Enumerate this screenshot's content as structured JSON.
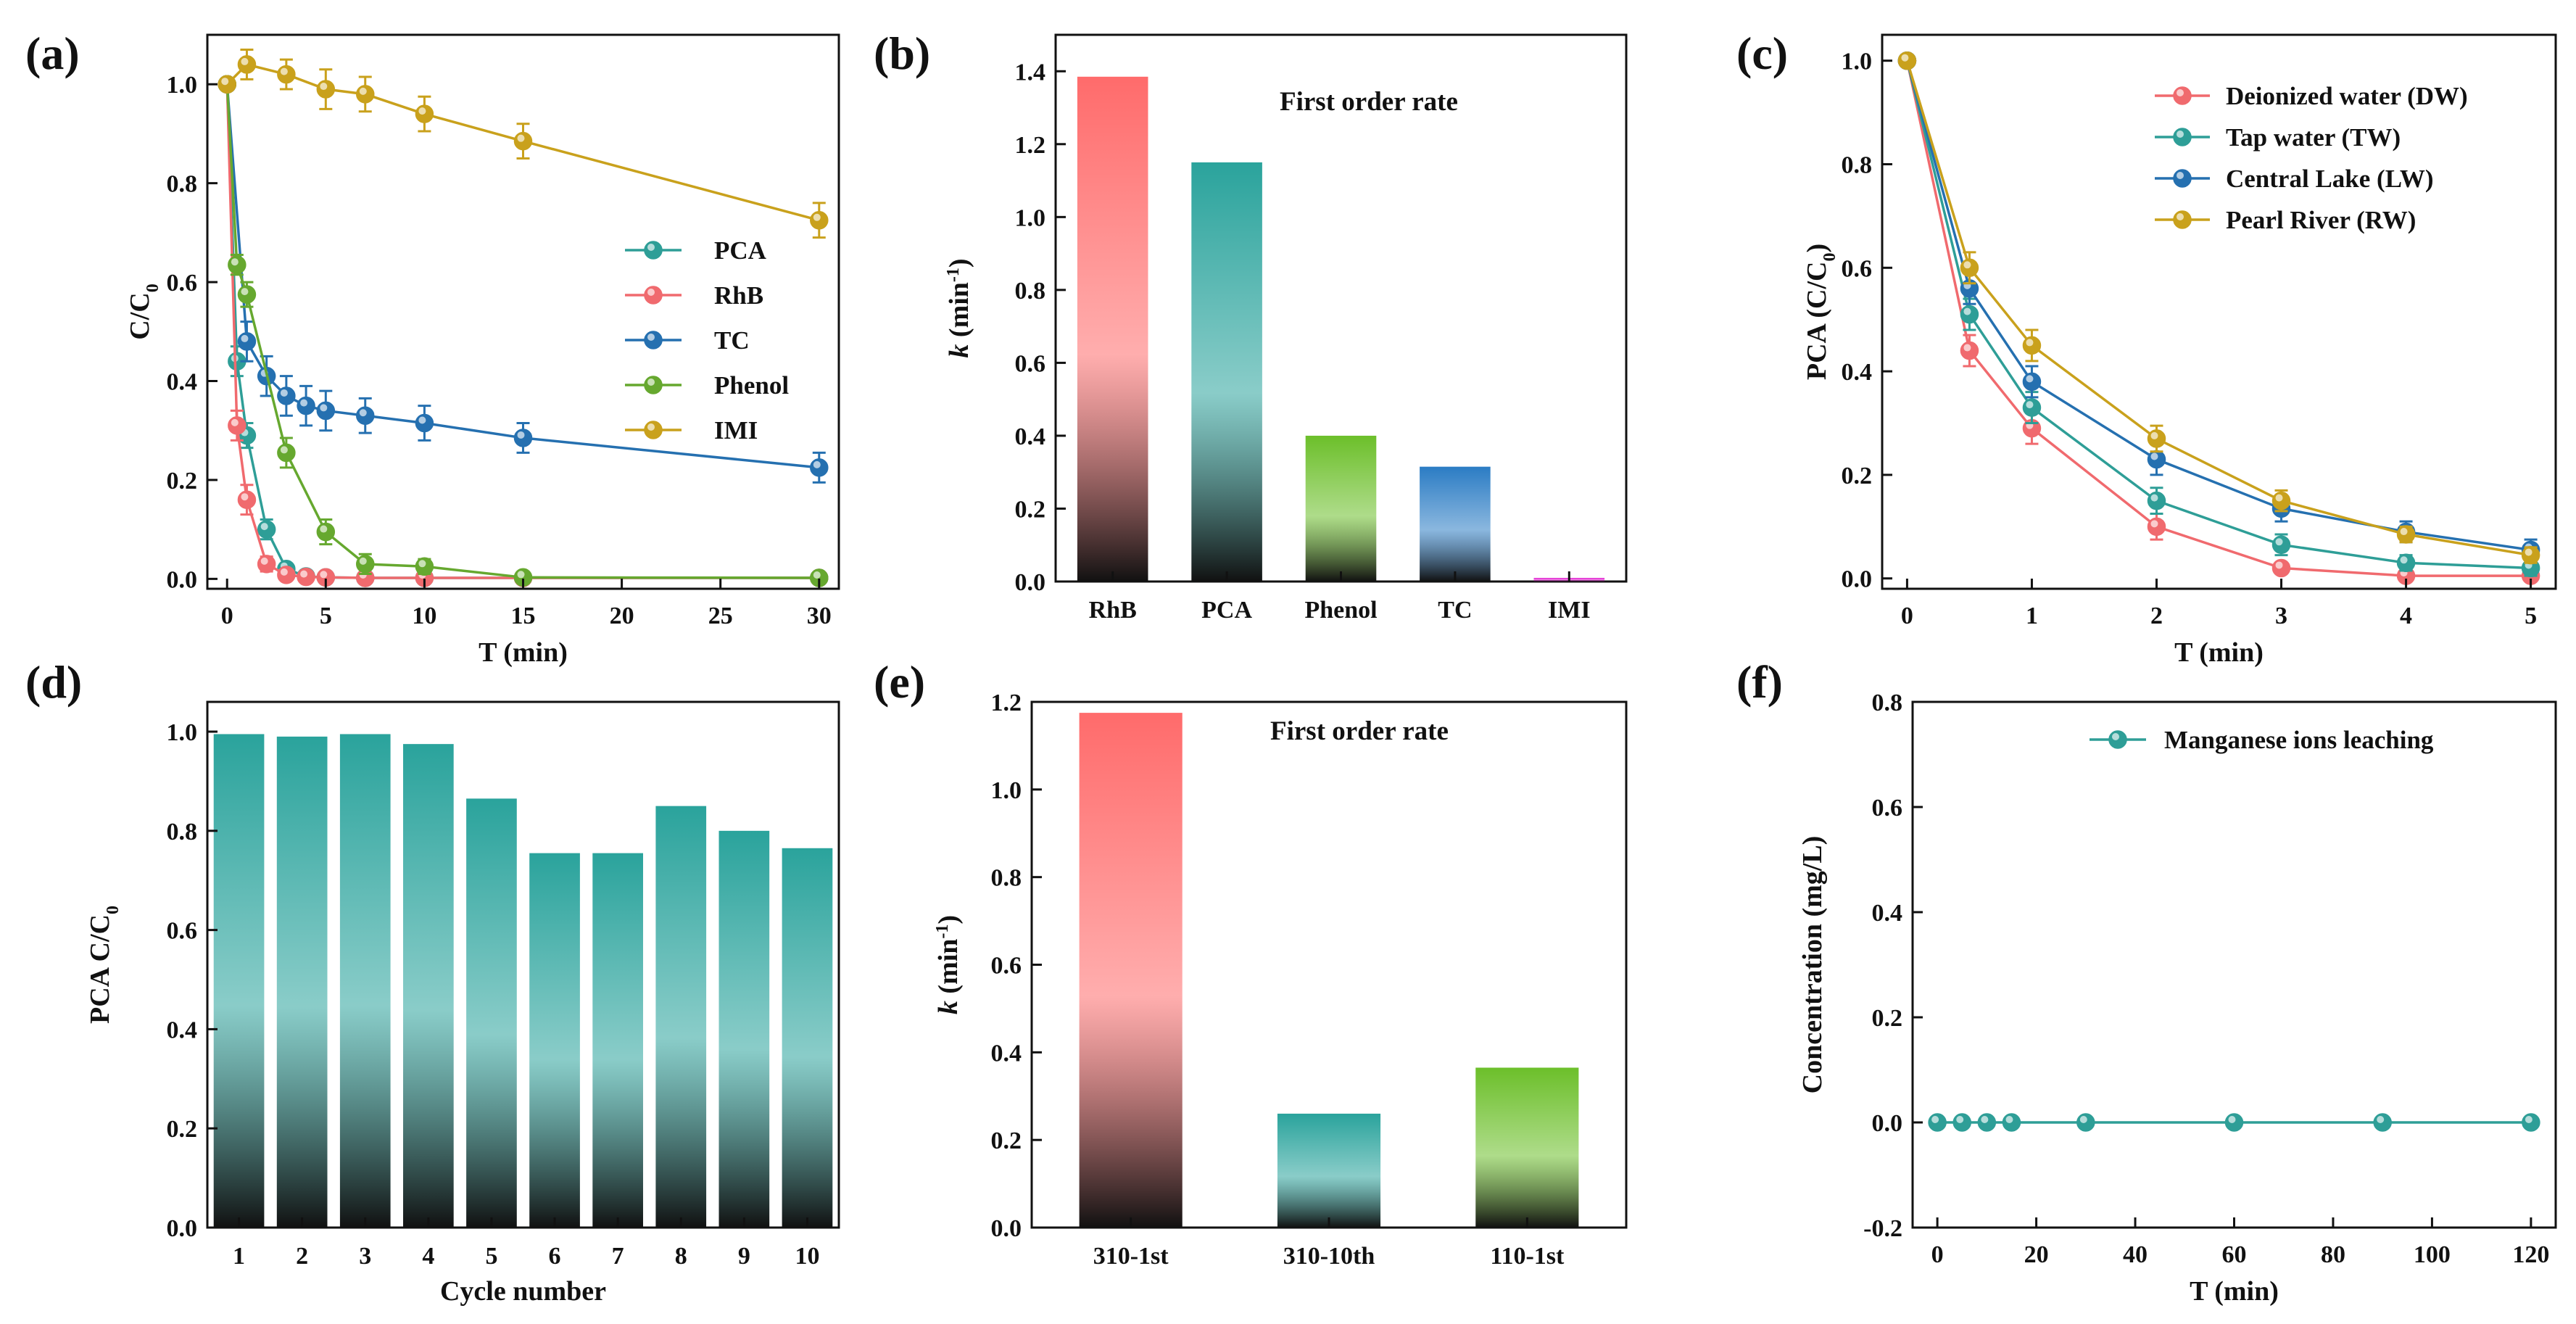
{
  "chart_data": [
    {
      "panel": "(a)",
      "type": "line",
      "xlabel": "T (min)",
      "ylabel": "C/C0",
      "xlim": [
        -1,
        31
      ],
      "ylim": [
        -0.02,
        1.1
      ],
      "xticks": [
        0,
        5,
        10,
        15,
        20,
        25,
        30
      ],
      "yticks": [
        0.0,
        0.2,
        0.4,
        0.6,
        0.8,
        1.0
      ],
      "legend_position": "center-right",
      "series": [
        {
          "name": "PCA",
          "color": "#2e9e97",
          "x": [
            0,
            0.5,
            1,
            2,
            3,
            4,
            5,
            7,
            10,
            15,
            30
          ],
          "y": [
            1.0,
            0.44,
            0.29,
            0.1,
            0.02,
            0.005,
            0.003,
            0.002,
            0.002,
            0.002,
            0.002
          ],
          "err": [
            0,
            0.03,
            0.025,
            0.02,
            0.01,
            0,
            0,
            0,
            0,
            0,
            0
          ]
        },
        {
          "name": "RhB",
          "color": "#f06a6e",
          "x": [
            0,
            0.5,
            1,
            2,
            3,
            4,
            5,
            7,
            10,
            15,
            30
          ],
          "y": [
            1.0,
            0.31,
            0.16,
            0.03,
            0.008,
            0.004,
            0.003,
            0.002,
            0.002,
            0.002,
            0.002
          ],
          "err": [
            0,
            0.03,
            0.03,
            0.015,
            0.01,
            0,
            0,
            0,
            0,
            0,
            0
          ]
        },
        {
          "name": "TC",
          "color": "#2570b0",
          "x": [
            0,
            1,
            2,
            3,
            4,
            5,
            7,
            10,
            15,
            30
          ],
          "y": [
            1.0,
            0.48,
            0.41,
            0.37,
            0.35,
            0.34,
            0.33,
            0.315,
            0.285,
            0.225
          ],
          "err": [
            0,
            0.04,
            0.04,
            0.04,
            0.04,
            0.04,
            0.035,
            0.035,
            0.03,
            0.03
          ]
        },
        {
          "name": "Phenol",
          "color": "#66a82f",
          "x": [
            0,
            0.5,
            1,
            3,
            5,
            7,
            10,
            15,
            30
          ],
          "y": [
            1.0,
            0.635,
            0.575,
            0.255,
            0.095,
            0.03,
            0.025,
            0.003,
            0.002
          ],
          "err": [
            0,
            0.02,
            0.025,
            0.03,
            0.025,
            0.02,
            0.015,
            0,
            0
          ]
        },
        {
          "name": "IMI",
          "color": "#c9a11c",
          "x": [
            0,
            1,
            3,
            5,
            7,
            10,
            15,
            30
          ],
          "y": [
            1.0,
            1.04,
            1.02,
            0.99,
            0.98,
            0.94,
            0.885,
            0.725
          ],
          "err": [
            0,
            0.03,
            0.03,
            0.04,
            0.035,
            0.035,
            0.035,
            0.035
          ]
        }
      ]
    },
    {
      "panel": "(b)",
      "type": "bar",
      "title": "First order rate",
      "xlabel": "",
      "ylabel": "k (min-1)",
      "ylim": [
        0,
        1.5
      ],
      "yticks": [
        0.0,
        0.2,
        0.4,
        0.6,
        0.8,
        1.0,
        1.2,
        1.4
      ],
      "categories": [
        "RhB",
        "PCA",
        "Phenol",
        "TC",
        "IMI"
      ],
      "values": [
        1.385,
        1.15,
        0.4,
        0.315,
        0.01
      ],
      "colors": [
        "#ff6b6b",
        "#2aa39c",
        "#6cbf2a",
        "#2b7cc4",
        "#e020d0"
      ]
    },
    {
      "panel": "(c)",
      "type": "line",
      "xlabel": "T (min)",
      "ylabel": "PCA (C/C0)",
      "xlim": [
        -0.2,
        5.2
      ],
      "ylim": [
        -0.02,
        1.05
      ],
      "xticks": [
        0,
        1,
        2,
        3,
        4,
        5
      ],
      "yticks": [
        0.0,
        0.2,
        0.4,
        0.6,
        0.8,
        1.0
      ],
      "legend_position": "top-right",
      "series": [
        {
          "name": "Deionized water (DW)",
          "color": "#f06a6e",
          "x": [
            0,
            0.5,
            1,
            2,
            3,
            4,
            5
          ],
          "y": [
            1.0,
            0.44,
            0.29,
            0.1,
            0.02,
            0.005,
            0.005
          ],
          "err": [
            0,
            0.03,
            0.03,
            0.025,
            0.01,
            0.01,
            0.01
          ]
        },
        {
          "name": "Tap water (TW)",
          "color": "#2e9e97",
          "x": [
            0,
            0.5,
            1,
            2,
            3,
            4,
            5
          ],
          "y": [
            1.0,
            0.51,
            0.33,
            0.15,
            0.065,
            0.03,
            0.02
          ],
          "err": [
            0,
            0.03,
            0.03,
            0.025,
            0.02,
            0.015,
            0.015
          ]
        },
        {
          "name": "Central Lake (LW)",
          "color": "#2570b0",
          "x": [
            0,
            0.5,
            1,
            2,
            3,
            4,
            5
          ],
          "y": [
            1.0,
            0.56,
            0.38,
            0.23,
            0.135,
            0.09,
            0.055
          ],
          "err": [
            0,
            0.03,
            0.03,
            0.03,
            0.025,
            0.02,
            0.02
          ]
        },
        {
          "name": "Pearl River (RW)",
          "color": "#c9a11c",
          "x": [
            0,
            0.5,
            1,
            2,
            3,
            4,
            5
          ],
          "y": [
            1.0,
            0.6,
            0.45,
            0.27,
            0.15,
            0.085,
            0.045
          ],
          "err": [
            0,
            0.03,
            0.03,
            0.025,
            0.02,
            0.015,
            0.015
          ]
        }
      ]
    },
    {
      "panel": "(d)",
      "type": "bar",
      "xlabel": "Cycle number",
      "ylabel": "PCA C/C0",
      "ylim": [
        0,
        1.06
      ],
      "yticks": [
        0.0,
        0.2,
        0.4,
        0.6,
        0.8,
        1.0
      ],
      "categories": [
        "1",
        "2",
        "3",
        "4",
        "5",
        "6",
        "7",
        "8",
        "9",
        "10"
      ],
      "values": [
        0.995,
        0.99,
        0.995,
        0.975,
        0.865,
        0.755,
        0.755,
        0.85,
        0.8,
        0.765
      ],
      "colors": [
        "#2aa39c"
      ]
    },
    {
      "panel": "(e)",
      "type": "bar",
      "title": "First order rate",
      "xlabel": "",
      "ylabel": "k (min-1)",
      "ylim": [
        0,
        1.2
      ],
      "yticks": [
        0.0,
        0.2,
        0.4,
        0.6,
        0.8,
        1.0,
        1.2
      ],
      "categories": [
        "310-1st",
        "310-10th",
        "110-1st"
      ],
      "values": [
        1.175,
        0.26,
        0.365
      ],
      "colors": [
        "#ff6b6b",
        "#2aa39c",
        "#6cbf2a"
      ]
    },
    {
      "panel": "(f)",
      "type": "line",
      "xlabel": "T (min)",
      "ylabel": "Concentration (mg/L)",
      "xlim": [
        -5,
        125
      ],
      "ylim": [
        -0.2,
        0.8
      ],
      "xticks": [
        0,
        20,
        40,
        60,
        80,
        100,
        120
      ],
      "yticks": [
        -0.2,
        0.0,
        0.2,
        0.4,
        0.6,
        0.8
      ],
      "legend_position": "top-right",
      "series": [
        {
          "name": "Manganese ions leaching",
          "color": "#2e9e97",
          "x": [
            0,
            5,
            10,
            15,
            30,
            60,
            90,
            120
          ],
          "y": [
            0,
            0,
            0,
            0,
            0,
            0,
            0,
            0
          ],
          "err": [
            0,
            0,
            0,
            0,
            0,
            0,
            0,
            0
          ]
        }
      ]
    }
  ]
}
